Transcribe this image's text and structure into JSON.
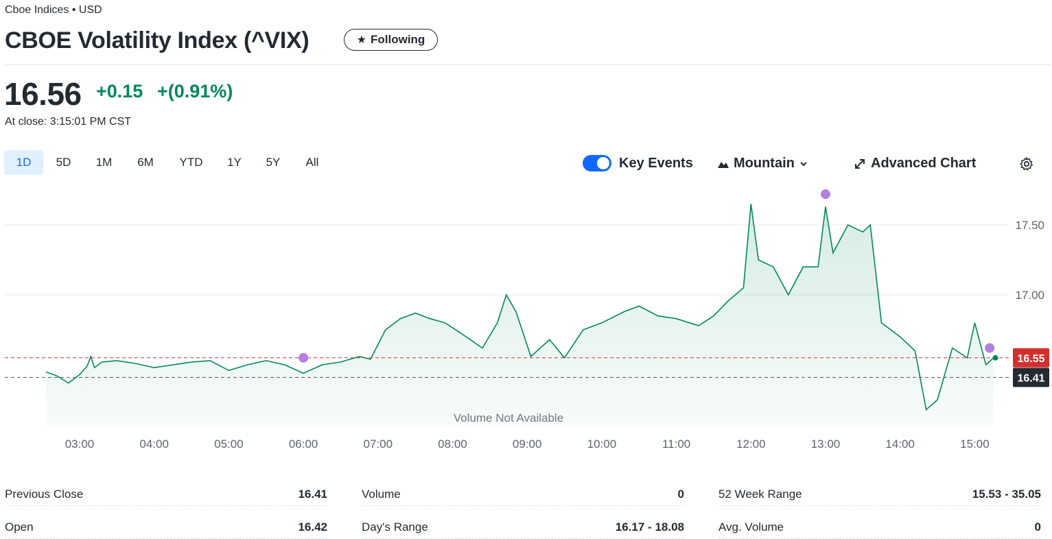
{
  "header": {
    "exchange": "Cboe Indices • USD",
    "title": "CBOE Volatility Index (^VIX)",
    "follow_label": "Following"
  },
  "quote": {
    "price": "16.56",
    "change": "+0.15",
    "change_pct": "+(0.91%)",
    "close_time": "At close: 3:15:01 PM CST"
  },
  "ranges": [
    "1D",
    "5D",
    "1M",
    "6M",
    "YTD",
    "1Y",
    "5Y",
    "All"
  ],
  "active_range": "1D",
  "controls": {
    "key_events_label": "Key Events",
    "key_events_on": true,
    "chart_type_label": "Mountain",
    "advanced_label": "Advanced Chart"
  },
  "colors": {
    "up": "#00875a",
    "accent": "#0f69ff",
    "event": "#b37fe0",
    "prev_close": "#d32f2f"
  },
  "chart_data": {
    "type": "area",
    "x_labels": [
      "03:00",
      "04:00",
      "05:00",
      "06:00",
      "07:00",
      "08:00",
      "09:00",
      "10:00",
      "11:00",
      "12:00",
      "13:00",
      "14:00",
      "15:00"
    ],
    "y_ticks": [
      "17.50",
      "17.00"
    ],
    "ylim": [
      16.0,
      17.8
    ],
    "price_label": "16.55",
    "prev_close_label": "16.41",
    "prev_close": 16.41,
    "volume_note": "Volume Not Available",
    "key_events": [
      {
        "x": "06:00",
        "value": 16.55
      },
      {
        "x": "13:00",
        "value": 17.72
      },
      {
        "x": "15:12",
        "value": 16.62
      }
    ],
    "series": [
      {
        "time": 2.55,
        "value": 16.45
      },
      {
        "time": 2.7,
        "value": 16.42
      },
      {
        "time": 2.85,
        "value": 16.37
      },
      {
        "time": 3.0,
        "value": 16.43
      },
      {
        "time": 3.1,
        "value": 16.49
      },
      {
        "time": 3.15,
        "value": 16.56
      },
      {
        "time": 3.2,
        "value": 16.48
      },
      {
        "time": 3.3,
        "value": 16.52
      },
      {
        "time": 3.5,
        "value": 16.53
      },
      {
        "time": 3.75,
        "value": 16.51
      },
      {
        "time": 4.0,
        "value": 16.48
      },
      {
        "time": 4.25,
        "value": 16.5
      },
      {
        "time": 4.5,
        "value": 16.52
      },
      {
        "time": 4.75,
        "value": 16.53
      },
      {
        "time": 5.0,
        "value": 16.46
      },
      {
        "time": 5.25,
        "value": 16.5
      },
      {
        "time": 5.5,
        "value": 16.53
      },
      {
        "time": 5.75,
        "value": 16.5
      },
      {
        "time": 6.0,
        "value": 16.44
      },
      {
        "time": 6.25,
        "value": 16.5
      },
      {
        "time": 6.5,
        "value": 16.52
      },
      {
        "time": 6.75,
        "value": 16.56
      },
      {
        "time": 6.9,
        "value": 16.54
      },
      {
        "time": 7.1,
        "value": 16.75
      },
      {
        "time": 7.3,
        "value": 16.83
      },
      {
        "time": 7.5,
        "value": 16.87
      },
      {
        "time": 7.7,
        "value": 16.83
      },
      {
        "time": 7.9,
        "value": 16.8
      },
      {
        "time": 8.1,
        "value": 16.73
      },
      {
        "time": 8.4,
        "value": 16.62
      },
      {
        "time": 8.6,
        "value": 16.8
      },
      {
        "time": 8.72,
        "value": 17.0
      },
      {
        "time": 8.85,
        "value": 16.88
      },
      {
        "time": 9.05,
        "value": 16.56
      },
      {
        "time": 9.3,
        "value": 16.68
      },
      {
        "time": 9.5,
        "value": 16.55
      },
      {
        "time": 9.75,
        "value": 16.75
      },
      {
        "time": 10.0,
        "value": 16.8
      },
      {
        "time": 10.3,
        "value": 16.88
      },
      {
        "time": 10.5,
        "value": 16.92
      },
      {
        "time": 10.75,
        "value": 16.85
      },
      {
        "time": 11.0,
        "value": 16.83
      },
      {
        "time": 11.3,
        "value": 16.78
      },
      {
        "time": 11.5,
        "value": 16.85
      },
      {
        "time": 11.7,
        "value": 16.96
      },
      {
        "time": 11.9,
        "value": 17.05
      },
      {
        "time": 12.0,
        "value": 17.65
      },
      {
        "time": 12.1,
        "value": 17.25
      },
      {
        "time": 12.3,
        "value": 17.2
      },
      {
        "time": 12.5,
        "value": 17.0
      },
      {
        "time": 12.7,
        "value": 17.2
      },
      {
        "time": 12.9,
        "value": 17.2
      },
      {
        "time": 13.0,
        "value": 17.63
      },
      {
        "time": 13.1,
        "value": 17.3
      },
      {
        "time": 13.3,
        "value": 17.5
      },
      {
        "time": 13.5,
        "value": 17.45
      },
      {
        "time": 13.6,
        "value": 17.5
      },
      {
        "time": 13.75,
        "value": 16.8
      },
      {
        "time": 14.0,
        "value": 16.7
      },
      {
        "time": 14.2,
        "value": 16.6
      },
      {
        "time": 14.35,
        "value": 16.18
      },
      {
        "time": 14.5,
        "value": 16.25
      },
      {
        "time": 14.7,
        "value": 16.62
      },
      {
        "time": 14.9,
        "value": 16.55
      },
      {
        "time": 15.0,
        "value": 16.8
      },
      {
        "time": 15.15,
        "value": 16.5
      },
      {
        "time": 15.25,
        "value": 16.55
      }
    ]
  },
  "stats": [
    {
      "label": "Previous Close",
      "value": "16.41"
    },
    {
      "label": "Volume",
      "value": "0"
    },
    {
      "label": "52 Week Range",
      "value": "15.53 - 35.05"
    },
    {
      "label": "Open",
      "value": "16.42"
    },
    {
      "label": "Day's Range",
      "value": "16.17 - 18.08"
    },
    {
      "label": "Avg. Volume",
      "value": "0"
    }
  ]
}
